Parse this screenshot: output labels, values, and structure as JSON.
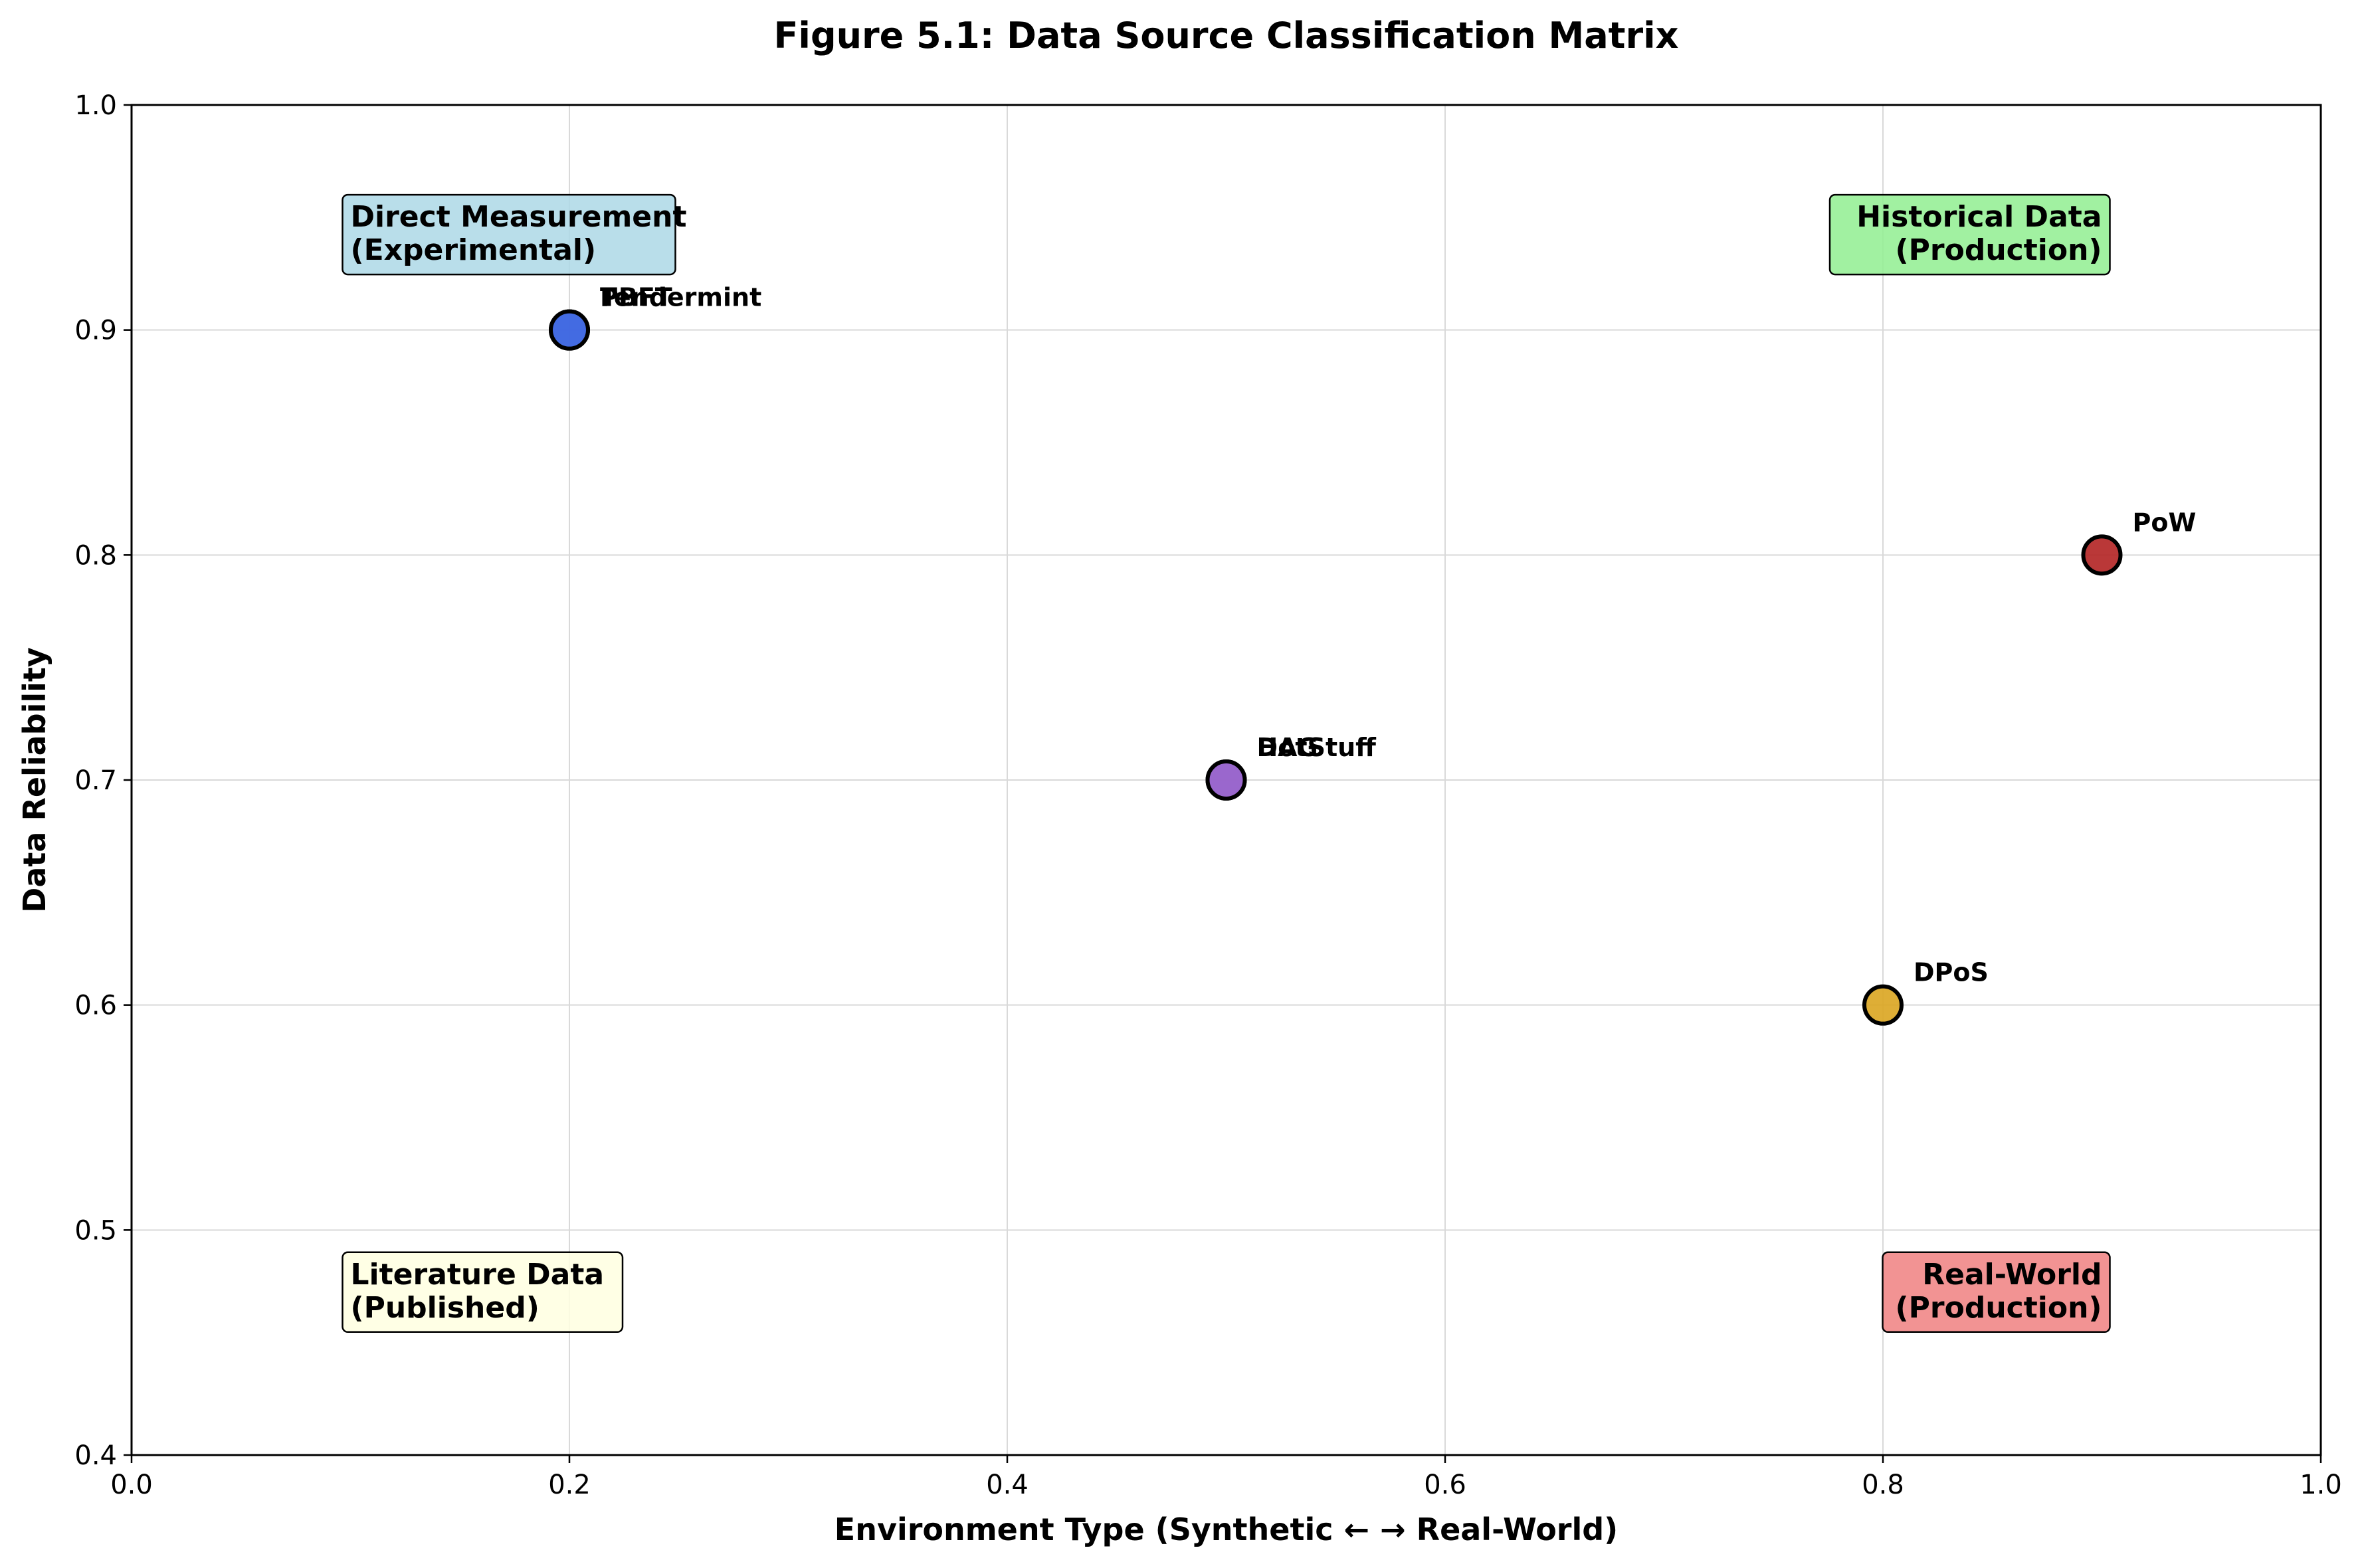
{
  "chart_data": {
    "type": "scatter",
    "title": "Figure 5.1: Data Source Classification Matrix",
    "xlabel": "Environment Type (Synthetic ← → Real-World)",
    "ylabel": "Data Reliability",
    "xlim": [
      0.0,
      1.0
    ],
    "ylim": [
      0.4,
      1.0
    ],
    "xticks": [
      "0.0",
      "0.2",
      "0.4",
      "0.6",
      "0.8",
      "1.0"
    ],
    "yticks": [
      "0.4",
      "0.5",
      "0.6",
      "0.7",
      "0.8",
      "0.9",
      "1.0"
    ],
    "grid": true,
    "points": [
      {
        "label": "Tendermint",
        "x": 0.2,
        "y": 0.9,
        "color": "#4169e1"
      },
      {
        "label": "PBFT",
        "x": 0.2,
        "y": 0.9,
        "color": "#4169e1"
      },
      {
        "label": "HotStuff",
        "x": 0.5,
        "y": 0.7,
        "color": "#9966cc"
      },
      {
        "label": "DAG",
        "x": 0.5,
        "y": 0.7,
        "color": "#9966cc"
      },
      {
        "label": "PoW",
        "x": 0.9,
        "y": 0.8,
        "color": "#b22222"
      },
      {
        "label": "DPoS",
        "x": 0.8,
        "y": 0.6,
        "color": "#daa520"
      }
    ],
    "annotations": [
      {
        "lines": [
          "Direct Measurement",
          "(Experimental)"
        ],
        "x": 0.1,
        "y": 0.93,
        "align": "left",
        "color": "#add8e6"
      },
      {
        "lines": [
          "Historical Data",
          "(Production)"
        ],
        "x": 0.9,
        "y": 0.93,
        "align": "right",
        "color": "#90ee90"
      },
      {
        "lines": [
          "Literature Data",
          "(Published)"
        ],
        "x": 0.1,
        "y": 0.46,
        "align": "left",
        "color": "#ffffe0"
      },
      {
        "lines": [
          "Real-World",
          "(Production)"
        ],
        "x": 0.9,
        "y": 0.46,
        "align": "right",
        "color": "#f08080"
      }
    ]
  }
}
